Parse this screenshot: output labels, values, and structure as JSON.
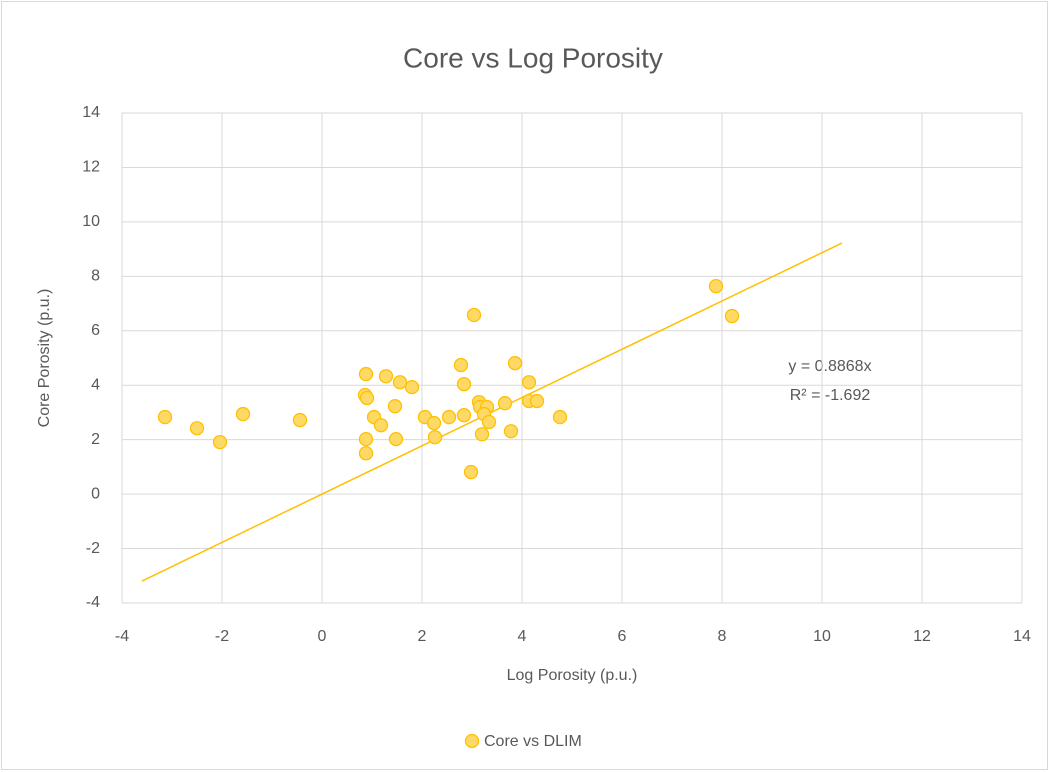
{
  "chart_data": {
    "type": "scatter",
    "title": "Core vs Log Porosity",
    "x_label": "Log Porosity (p.u.)",
    "y_label": "Core Porosity (p.u.)",
    "xlim": [
      -4,
      14
    ],
    "ylim": [
      -4,
      14
    ],
    "xticks": [
      -4,
      -2,
      0,
      2,
      4,
      6,
      8,
      10,
      12,
      14
    ],
    "yticks": [
      -4,
      -2,
      0,
      2,
      4,
      6,
      8,
      10,
      12,
      14
    ],
    "grid": true,
    "legend": "bottom",
    "series": [
      {
        "name": "Core vs DLIM",
        "color": "#ffc000",
        "fill": "#ffd966",
        "x": [
          -3.14,
          -2.5,
          -2.04,
          -1.58,
          -0.44,
          0.88,
          0.86,
          0.9,
          0.88,
          0.88,
          1.04,
          1.18,
          1.28,
          1.46,
          1.48,
          1.56,
          1.8,
          2.06,
          2.24,
          2.26,
          2.54,
          2.78,
          2.84,
          2.84,
          2.98,
          3.04,
          3.14,
          3.16,
          3.2,
          3.3,
          3.24,
          3.34,
          3.66,
          3.78,
          3.86,
          4.14,
          4.14,
          4.3,
          4.76,
          7.88,
          8.2
        ],
        "values": [
          2.83,
          2.42,
          1.91,
          2.94,
          2.72,
          4.41,
          3.64,
          3.53,
          2.02,
          1.5,
          2.83,
          2.53,
          4.33,
          3.23,
          2.02,
          4.11,
          3.93,
          2.83,
          2.61,
          2.09,
          2.83,
          4.74,
          4.04,
          2.9,
          0.81,
          6.58,
          3.38,
          3.2,
          2.2,
          3.2,
          2.94,
          2.65,
          3.34,
          2.31,
          4.81,
          4.11,
          3.42,
          3.42,
          2.83,
          7.64,
          6.54
        ]
      }
    ],
    "trendline": {
      "slope": 0.8868,
      "x_range": [
        -3.6,
        10.4
      ],
      "color": "#ffc000",
      "equation": "y = 0.8868x",
      "r_squared": "R² = -1.692"
    }
  }
}
